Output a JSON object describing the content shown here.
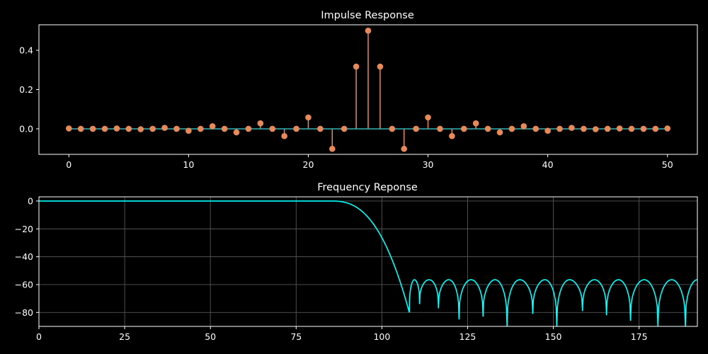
{
  "chart_data": [
    {
      "type": "stem",
      "title": "Impulse Response",
      "xlabel": "",
      "ylabel": "",
      "xlim": [
        -2.5,
        52.5
      ],
      "ylim": [
        -0.13,
        0.53
      ],
      "grid": false,
      "xticks": [
        0,
        10,
        20,
        30,
        40,
        50
      ],
      "yticks": [
        0.0,
        0.2,
        0.4
      ],
      "ytick_labels": [
        "0.0",
        "0.2",
        "0.4"
      ],
      "baseline": 0,
      "colors": {
        "stem": "#e8895a",
        "baseline": "#33b5b5"
      },
      "x": [
        0,
        1,
        2,
        3,
        4,
        5,
        6,
        7,
        8,
        9,
        10,
        11,
        12,
        13,
        14,
        15,
        16,
        17,
        18,
        19,
        20,
        21,
        22,
        23,
        24,
        25,
        26,
        27,
        28,
        29,
        30,
        31,
        32,
        33,
        34,
        35,
        36,
        37,
        38,
        39,
        40,
        41,
        42,
        43,
        44,
        45,
        46,
        47,
        48,
        49,
        50
      ],
      "values": [
        0.002,
        0.0,
        0.0,
        0.0,
        0.002,
        0.0,
        -0.002,
        0.0,
        0.005,
        0.0,
        -0.01,
        0.0,
        0.013,
        0.0,
        -0.018,
        0.0,
        0.028,
        0.0,
        -0.037,
        0.0,
        0.058,
        0.0,
        -0.102,
        0.0,
        0.317,
        0.5,
        0.317,
        0.0,
        -0.102,
        0.0,
        0.058,
        0.0,
        -0.037,
        0.0,
        0.028,
        0.0,
        -0.018,
        0.0,
        0.013,
        0.0,
        -0.01,
        0.0,
        0.005,
        0.0,
        -0.002,
        0.0,
        0.002,
        0.0,
        0.0,
        0.0,
        0.002
      ]
    },
    {
      "type": "line",
      "title": "Frequency Reponse",
      "xlabel": "",
      "ylabel": "",
      "xlim": [
        0,
        192
      ],
      "ylim": [
        -90,
        3
      ],
      "grid": true,
      "xticks": [
        0,
        25,
        50,
        75,
        100,
        125,
        150,
        175
      ],
      "yticks": [
        0,
        -20,
        -40,
        -60,
        -80
      ],
      "ytick_labels": [
        "0",
        "−20",
        "−40",
        "−60",
        "−80"
      ],
      "colors": {
        "line": "#00ffff",
        "grid": "#555555"
      },
      "passband_edge": 85,
      "transition_end": 108,
      "notches": [
        {
          "x": 108,
          "y": -80
        },
        {
          "x": 111,
          "y": -74
        },
        {
          "x": 116.5,
          "y": -77
        },
        {
          "x": 122.5,
          "y": -85
        },
        {
          "x": 129.5,
          "y": -83
        },
        {
          "x": 136.5,
          "y": -90
        },
        {
          "x": 144,
          "y": -81
        },
        {
          "x": 151,
          "y": -90
        },
        {
          "x": 158.5,
          "y": -79
        },
        {
          "x": 165.5,
          "y": -82
        },
        {
          "x": 172.5,
          "y": -86
        },
        {
          "x": 180.5,
          "y": -90
        },
        {
          "x": 188.5,
          "y": -90
        }
      ],
      "sidelobe_level": -56.5
    }
  ]
}
